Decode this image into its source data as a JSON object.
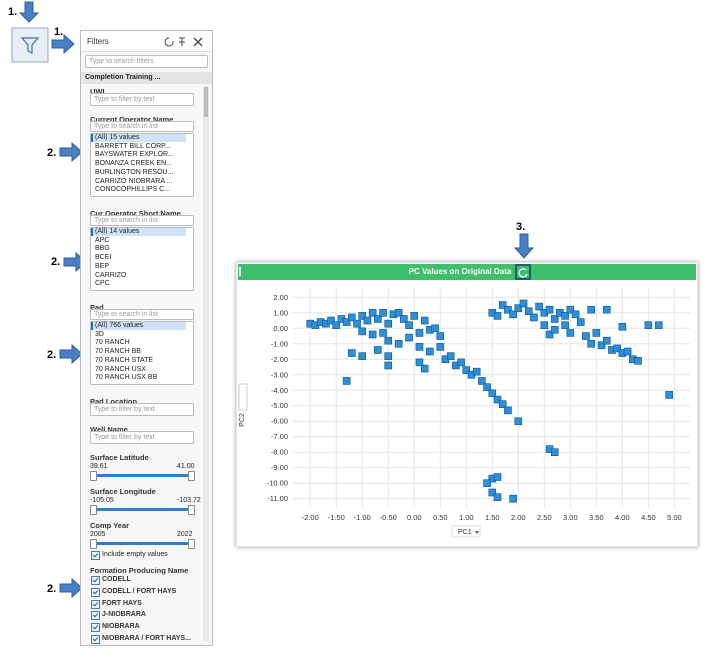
{
  "annotations": [
    "1.",
    "1.",
    "2.",
    "2.",
    "2.",
    "2.",
    "3."
  ],
  "filters": {
    "title": "Filters",
    "search_placeholder": "Type to search filters",
    "group": "Completion Training ...",
    "sections": [
      {
        "name": "UWI",
        "placeholder": "Type to filter by text"
      },
      {
        "name": "Current Operator Name",
        "placeholder": "Type to search in list",
        "items": [
          "(All) 15 values",
          "BARRETT BILL CORP...",
          "BAYSWATER EXPLOR...",
          "BONANZA CREEK EN...",
          "BURLINGTON RESOU...",
          "CARRIZO NIOBRARA ...",
          "CONOCOPHILLIPS C..."
        ]
      },
      {
        "name": "Cur Operator Short Name",
        "placeholder": "Type to search in list",
        "items": [
          "(All) 14 values",
          "APC",
          "BBG",
          "BCEI",
          "BEP",
          "CARRIZO",
          "CPC"
        ]
      },
      {
        "name": "Pad",
        "placeholder": "Type to search in list",
        "items": [
          "(All) 766 values",
          "3D",
          "70 RANCH",
          "70 RANCH BB",
          "70 RANCH STATE",
          "70 RANCH USX",
          "70 RANCH USX BB"
        ]
      },
      {
        "name": "Pad Location",
        "placeholder": "Type to filter by text"
      },
      {
        "name": "Well Name",
        "placeholder": "Type to filter by text"
      },
      {
        "name": "Surface Latitude",
        "min": "39.61",
        "max": "41.00"
      },
      {
        "name": "Surface Longitude",
        "min": "-105.05",
        "max": "-103.72"
      },
      {
        "name": "Comp Year",
        "min": "2005",
        "max": "2022",
        "checkbox": "Include empty values"
      },
      {
        "name": "Formation Producing Name",
        "checks": [
          "CODELL",
          "CODELL / FORT HAYS",
          "FORT HAYS",
          "J-NIOBRARA",
          "NIOBRARA",
          "NIOBRARA / FORT HAYS..."
        ]
      }
    ]
  },
  "chart_data": {
    "type": "scatter",
    "title": "PC Values on Original Data",
    "xlabel": "PC1",
    "ylabel": "PC2",
    "color": "#2a90dc",
    "grid": true,
    "xlim": [
      -2.35,
      5.3
    ],
    "ylim": [
      -11.6,
      2.6
    ],
    "xticks": [
      {
        "value": -2,
        "label": "-2.00"
      },
      {
        "value": -1.5,
        "label": "-1.50"
      },
      {
        "value": -1,
        "label": "-1.00"
      },
      {
        "value": -0.5,
        "label": "-0.50"
      },
      {
        "value": 0,
        "label": "0.00"
      },
      {
        "value": 0.5,
        "label": "0.50"
      },
      {
        "value": 1,
        "label": "1.00"
      },
      {
        "value": 1.5,
        "label": "1.50"
      },
      {
        "value": 2,
        "label": "2.00"
      },
      {
        "value": 2.5,
        "label": "2.50"
      },
      {
        "value": 3,
        "label": "3.00"
      },
      {
        "value": 3.5,
        "label": "3.50"
      },
      {
        "value": 4,
        "label": "4.00"
      },
      {
        "value": 4.5,
        "label": "4.50"
      },
      {
        "value": 5,
        "label": "5.00"
      }
    ],
    "yticks": [
      {
        "value": 2,
        "label": "2.00"
      },
      {
        "value": 1,
        "label": "1.00"
      },
      {
        "value": 0,
        "label": "0.00"
      },
      {
        "value": -1,
        "label": "-1.00"
      },
      {
        "value": -2,
        "label": "-2.00"
      },
      {
        "value": -3,
        "label": "-3.00"
      },
      {
        "value": -4,
        "label": "-4.00"
      },
      {
        "value": -5,
        "label": "-5.00"
      },
      {
        "value": -6,
        "label": "-6.00"
      },
      {
        "value": -7,
        "label": "-7.00"
      },
      {
        "value": -8,
        "label": "-8.00"
      },
      {
        "value": -9,
        "label": "-9.00"
      },
      {
        "value": -10,
        "label": "-10.00"
      },
      {
        "value": -11,
        "label": "-11.00"
      }
    ],
    "x": [
      -2.0,
      -1.9,
      -1.8,
      -1.7,
      -1.6,
      -1.5,
      -1.4,
      -1.3,
      -1.2,
      -1.1,
      -1.0,
      -0.9,
      -0.8,
      -0.7,
      -0.6,
      -0.5,
      -0.4,
      -0.3,
      -0.2,
      -0.1,
      0.0,
      0.1,
      0.2,
      0.3,
      0.4,
      0.5,
      -1.0,
      -0.8,
      -0.6,
      -0.5,
      -0.3,
      -0.1,
      0.1,
      0.3,
      0.5,
      0.6,
      0.7,
      0.8,
      0.9,
      1.0,
      1.1,
      1.2,
      1.3,
      1.4,
      1.5,
      1.6,
      1.7,
      1.8,
      2.0,
      -1.2,
      -1.0,
      -0.7,
      -0.5,
      -0.5,
      -1.3,
      0.2,
      0.1,
      1.5,
      1.4,
      1.6,
      1.5,
      1.6,
      1.9,
      2.6,
      2.7,
      1.5,
      1.6,
      1.7,
      1.8,
      1.9,
      2.0,
      2.1,
      2.2,
      2.3,
      2.4,
      2.5,
      2.6,
      2.7,
      2.8,
      2.9,
      3.0,
      3.1,
      2.9,
      3.0,
      2.6,
      2.5,
      2.7,
      3.2,
      3.3,
      3.4,
      3.5,
      3.6,
      3.7,
      3.8,
      3.9,
      4.0,
      4.1,
      4.2,
      4.3,
      3.4,
      3.7,
      4.0,
      4.5,
      4.7,
      4.9
    ],
    "values": [
      0.3,
      0.2,
      0.4,
      0.3,
      0.5,
      0.2,
      0.6,
      0.4,
      0.7,
      0.3,
      0.8,
      0.5,
      1.0,
      0.6,
      1.0,
      0.3,
      0.9,
      1.0,
      0.6,
      0.2,
      0.8,
      -0.3,
      0.5,
      -0.1,
      0.0,
      -0.5,
      -0.2,
      -0.4,
      -0.3,
      -0.8,
      -1.0,
      -0.6,
      -1.2,
      -1.5,
      -1.2,
      -2.0,
      -1.8,
      -2.4,
      -2.2,
      -2.7,
      -3.0,
      -2.8,
      -3.4,
      -3.8,
      -4.2,
      -4.6,
      -4.9,
      -5.3,
      -6.0,
      -1.6,
      -1.8,
      -1.4,
      -2.4,
      -1.8,
      -3.4,
      -2.6,
      -2.2,
      -9.7,
      -10.0,
      -9.6,
      -10.6,
      -10.9,
      -11.0,
      -7.8,
      -8.0,
      1.0,
      0.8,
      1.5,
      1.2,
      0.9,
      1.3,
      1.6,
      1.1,
      0.7,
      1.4,
      1.0,
      1.2,
      0.6,
      1.0,
      0.8,
      1.2,
      0.9,
      0.2,
      -0.3,
      -0.4,
      0.2,
      -0.1,
      0.4,
      -0.5,
      -1.0,
      -0.3,
      -1.1,
      -0.8,
      -1.4,
      -1.3,
      -1.6,
      -1.5,
      -2.0,
      -2.1,
      1.2,
      1.2,
      0.1,
      0.2,
      0.2,
      -4.3
    ]
  }
}
